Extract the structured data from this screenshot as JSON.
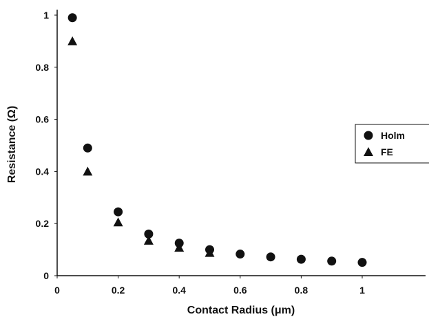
{
  "chart_data": {
    "type": "scatter",
    "xlabel": "Contact Radius (μm)",
    "ylabel": "Resistance (Ω)",
    "xlim": [
      0,
      1.2
    ],
    "ylim": [
      0,
      1
    ],
    "xticks": [
      0,
      0.2,
      0.4,
      0.6,
      0.8,
      1
    ],
    "yticks": [
      0,
      0.2,
      0.4,
      0.6,
      0.8,
      1
    ],
    "xtick_labels": [
      "0",
      "0.2",
      "0.4",
      "0.6",
      "0.8",
      "1"
    ],
    "ytick_labels": [
      "0",
      "0.2",
      "0.4",
      "0.6",
      "0.8",
      "1"
    ],
    "grid": false,
    "legend_position": "right",
    "series": [
      {
        "name": "Holm",
        "marker": "circle",
        "color": "#111111",
        "x": [
          0.05,
          0.1,
          0.2,
          0.3,
          0.4,
          0.5,
          0.6,
          0.7,
          0.8,
          0.9,
          1.0
        ],
        "y": [
          0.99,
          0.49,
          0.245,
          0.16,
          0.125,
          0.1,
          0.083,
          0.072,
          0.063,
          0.056,
          0.051
        ]
      },
      {
        "name": "FE",
        "marker": "triangle",
        "color": "#111111",
        "x": [
          0.05,
          0.1,
          0.2,
          0.3,
          0.4,
          0.5
        ],
        "y": [
          0.9,
          0.4,
          0.205,
          0.135,
          0.108,
          0.088
        ]
      }
    ]
  }
}
